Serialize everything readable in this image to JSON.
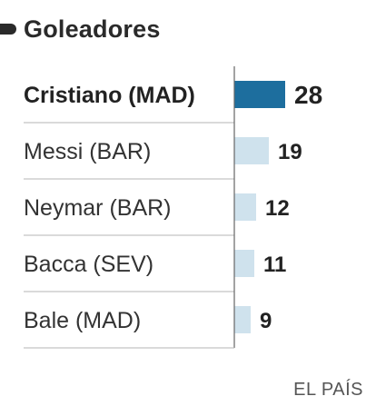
{
  "chart_data": {
    "type": "bar",
    "orientation": "horizontal",
    "title": "Goleadores",
    "categories": [
      "Cristiano (MAD)",
      "Messi (BAR)",
      "Neymar (BAR)",
      "Bacca (SEV)",
      "Bale (MAD)"
    ],
    "values": [
      28,
      19,
      12,
      11,
      9
    ],
    "highlight_index": 0,
    "colors": {
      "highlight": "#1d6e9e",
      "default": "#cfe2ed",
      "divider": "#b5b5b5",
      "axis": "#666666"
    },
    "xlim": [
      0,
      28
    ],
    "grid": false,
    "legend": "none"
  },
  "source": "EL PAÍS"
}
